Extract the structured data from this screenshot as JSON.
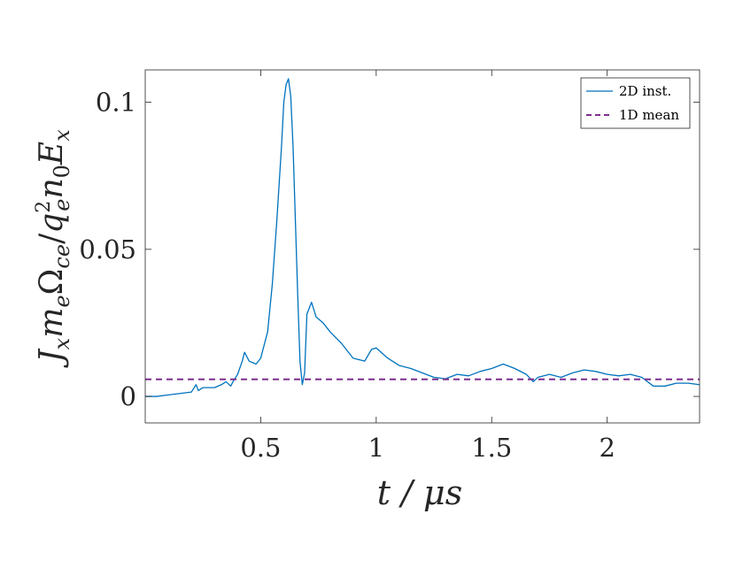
{
  "chart_data": {
    "type": "line",
    "xlabel": "t / μs",
    "ylabel": "J_x m_e Ω_ce / q_e² n_0 E_x",
    "xlim": [
      0,
      2.4
    ],
    "ylim": [
      -0.009,
      0.111
    ],
    "x_ticks": [
      0.5,
      1,
      1.5,
      2
    ],
    "x_tick_labels": [
      "0.5",
      "1",
      "1.5",
      "2"
    ],
    "y_ticks": [
      0,
      0.05,
      0.1
    ],
    "y_tick_labels": [
      "0",
      "0.05",
      "0.1"
    ],
    "grid": false,
    "legend_position": "top-right",
    "series": [
      {
        "name": "2D inst.",
        "color": "#0072BD",
        "style": "solid",
        "x": [
          0.0,
          0.05,
          0.1,
          0.15,
          0.2,
          0.22,
          0.23,
          0.25,
          0.3,
          0.33,
          0.35,
          0.37,
          0.38,
          0.4,
          0.42,
          0.43,
          0.45,
          0.48,
          0.5,
          0.53,
          0.55,
          0.57,
          0.59,
          0.6,
          0.61,
          0.62,
          0.63,
          0.64,
          0.65,
          0.66,
          0.67,
          0.68,
          0.69,
          0.7,
          0.72,
          0.74,
          0.77,
          0.8,
          0.85,
          0.9,
          0.95,
          0.98,
          1.0,
          1.05,
          1.1,
          1.15,
          1.2,
          1.25,
          1.3,
          1.35,
          1.4,
          1.45,
          1.5,
          1.55,
          1.6,
          1.65,
          1.68,
          1.7,
          1.75,
          1.8,
          1.85,
          1.9,
          1.95,
          2.0,
          2.05,
          2.1,
          2.15,
          2.2,
          2.25,
          2.3,
          2.35,
          2.4
        ],
        "y": [
          0.0,
          0.0,
          0.0005,
          0.001,
          0.0015,
          0.004,
          0.002,
          0.003,
          0.003,
          0.004,
          0.005,
          0.0035,
          0.005,
          0.0075,
          0.012,
          0.015,
          0.012,
          0.011,
          0.013,
          0.022,
          0.038,
          0.06,
          0.085,
          0.1,
          0.106,
          0.108,
          0.102,
          0.085,
          0.06,
          0.035,
          0.012,
          0.004,
          0.008,
          0.028,
          0.032,
          0.027,
          0.025,
          0.022,
          0.018,
          0.013,
          0.012,
          0.016,
          0.0165,
          0.013,
          0.0105,
          0.0095,
          0.008,
          0.0065,
          0.006,
          0.0075,
          0.007,
          0.0085,
          0.0095,
          0.011,
          0.0095,
          0.0075,
          0.005,
          0.0065,
          0.0075,
          0.0065,
          0.008,
          0.009,
          0.0085,
          0.0075,
          0.007,
          0.0075,
          0.0065,
          0.0035,
          0.0035,
          0.0045,
          0.0045,
          0.004
        ]
      },
      {
        "name": "1D mean",
        "color": "#7E2F8E",
        "style": "dashed",
        "x": [
          0.0,
          2.4
        ],
        "y": [
          0.0058,
          0.0058
        ]
      }
    ]
  }
}
